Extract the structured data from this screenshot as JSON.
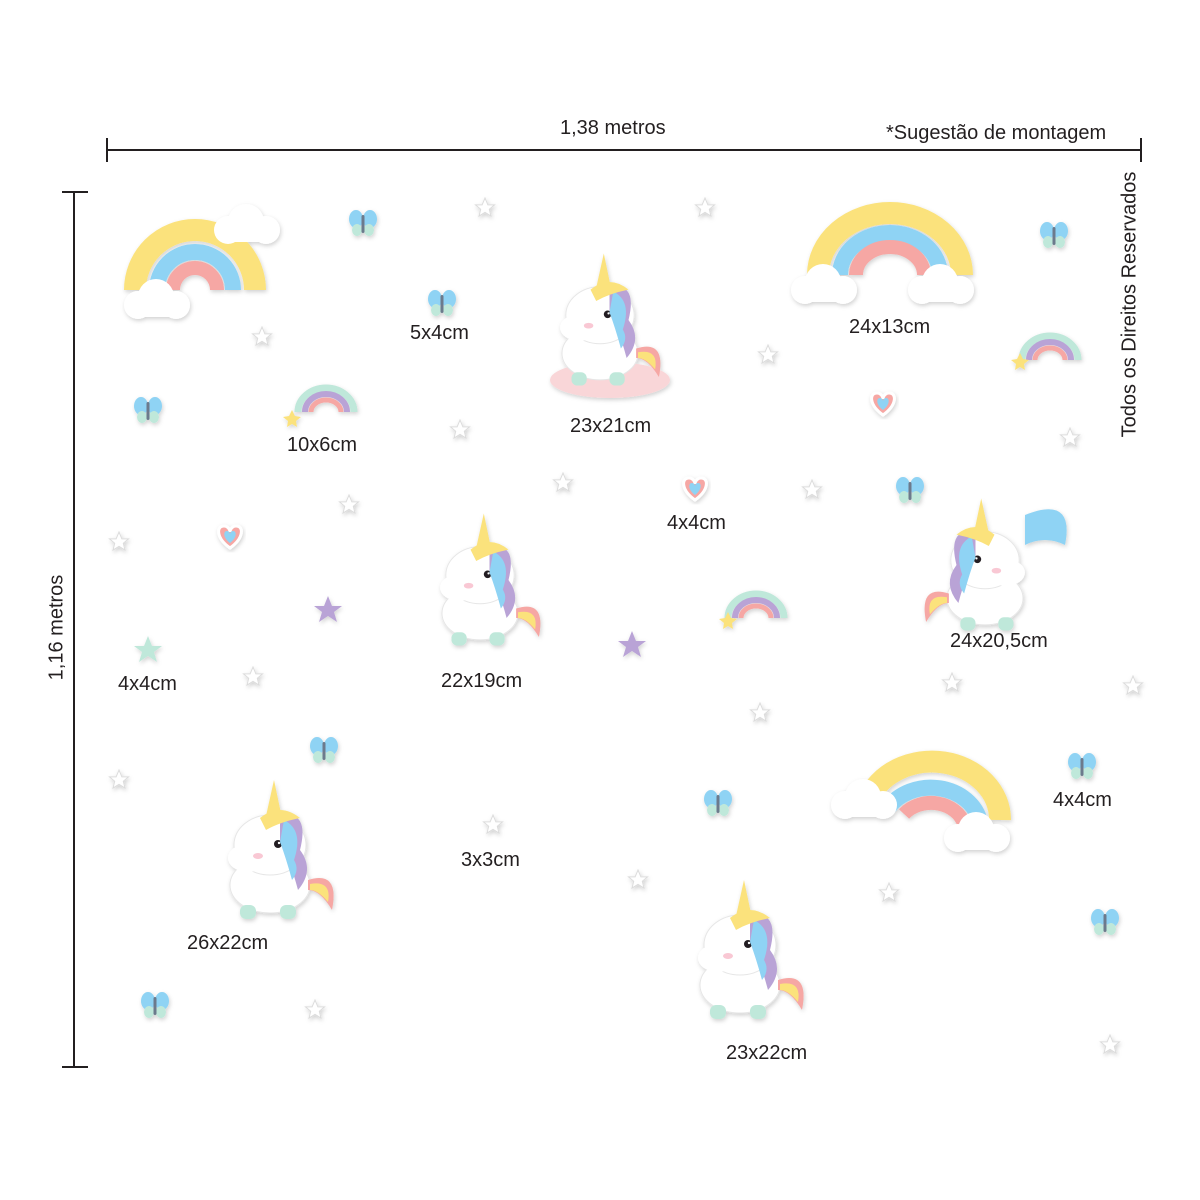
{
  "dimensions": {
    "width_label": "1,38 metros",
    "height_label": "1,16 metros",
    "note": "*Sugestão de montagem",
    "copyright": "Todos os Direitos Reservados"
  },
  "sizes": {
    "butterfly_small": "5x4cm",
    "rainbow_large_right": "24x13cm",
    "unicorn_sitting": "23x21cm",
    "rainbow_small": "10x6cm",
    "heart": "4x4cm",
    "unicorn_standing": "22x19cm",
    "unicorn_flying": "24x20,5cm",
    "star": "4x4cm",
    "butterfly_right": "4x4cm",
    "star_small": "3x3cm",
    "unicorn_running": "26x22cm",
    "unicorn_bottom": "23x22cm"
  },
  "colors": {
    "yellow": "#fbe27c",
    "blue": "#8fd3f4",
    "pink": "#f6a7a4",
    "mint": "#bfe8da",
    "lilac": "#b9a3d6",
    "line": "#231f20"
  }
}
